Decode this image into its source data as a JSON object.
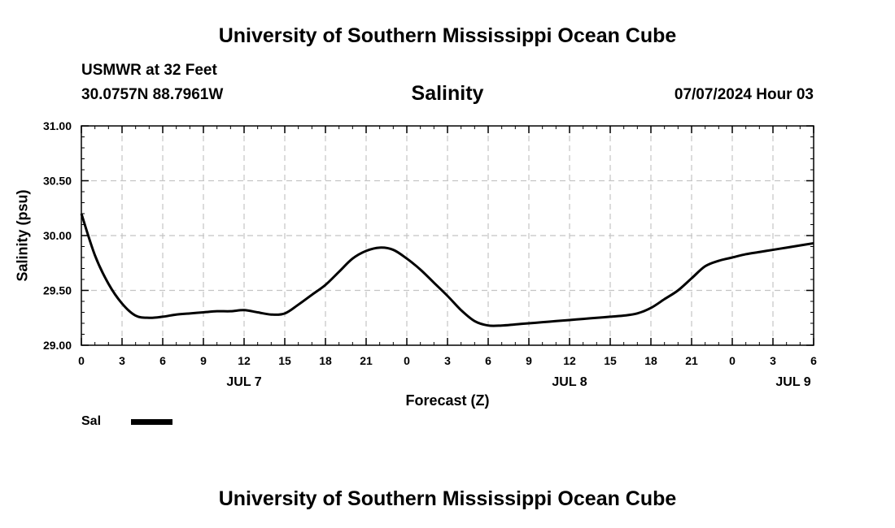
{
  "header": {
    "title": "University of Southern Mississippi Ocean Cube",
    "station": "USMWR at 32 Feet",
    "coords": "30.0757N  88.7961W",
    "timestamp": "07/07/2024 Hour 03"
  },
  "footer": {
    "title": "University of Southern Mississippi Ocean Cube"
  },
  "legend": {
    "label": "Sal",
    "color": "#000000"
  },
  "chart_data": {
    "type": "line",
    "title": "Salinity",
    "xlabel": "Forecast (Z)",
    "ylabel": "Salinity (psu)",
    "ylim": [
      29.0,
      31.0
    ],
    "yticks": [
      "29.00",
      "29.50",
      "30.00",
      "30.50",
      "31.00"
    ],
    "xlim_hours": [
      0,
      54
    ],
    "xtick_labels": [
      "0",
      "3",
      "6",
      "9",
      "12",
      "15",
      "18",
      "21",
      "0",
      "3",
      "6",
      "9",
      "12",
      "15",
      "18",
      "21",
      "0",
      "3",
      "6"
    ],
    "date_labels": [
      {
        "label": "JUL 7",
        "hour": 12
      },
      {
        "label": "JUL 8",
        "hour": 36
      },
      {
        "label": "JUL 9",
        "hour": 52.5
      }
    ],
    "grid": true,
    "series": [
      {
        "name": "Sal",
        "color": "#000000",
        "x": [
          0,
          1,
          2,
          3,
          4,
          5,
          6,
          7,
          8,
          9,
          10,
          11,
          12,
          13,
          14,
          15,
          16,
          17,
          18,
          19,
          20,
          21,
          22,
          23,
          24,
          25,
          26,
          27,
          28,
          29,
          30,
          31,
          32,
          33,
          34,
          35,
          36,
          37,
          38,
          39,
          40,
          41,
          42,
          43,
          44,
          45,
          46,
          47,
          48,
          49,
          50,
          51,
          52,
          53,
          54
        ],
        "y": [
          30.2,
          29.82,
          29.56,
          29.38,
          29.27,
          29.25,
          29.26,
          29.28,
          29.29,
          29.3,
          29.31,
          29.31,
          29.32,
          29.3,
          29.28,
          29.29,
          29.37,
          29.46,
          29.55,
          29.67,
          29.79,
          29.86,
          29.89,
          29.87,
          29.79,
          29.69,
          29.57,
          29.45,
          29.32,
          29.22,
          29.18,
          29.18,
          29.19,
          29.2,
          29.21,
          29.22,
          29.23,
          29.24,
          29.25,
          29.26,
          29.27,
          29.29,
          29.34,
          29.42,
          29.5,
          29.61,
          29.72,
          29.77,
          29.8,
          29.83,
          29.85,
          29.87,
          29.89,
          29.91,
          29.93
        ]
      }
    ]
  }
}
